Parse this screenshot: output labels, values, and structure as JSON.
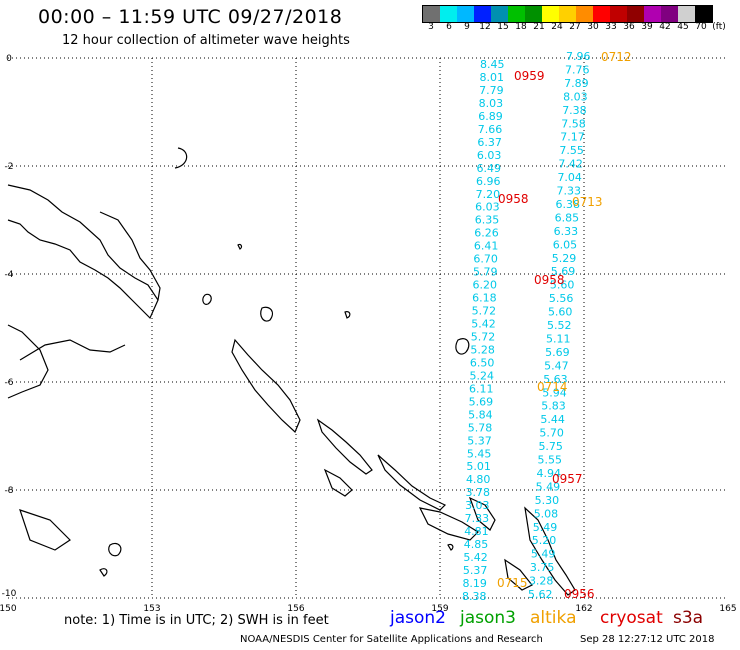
{
  "title": "00:00 – 11:59 UTC 09/27/2018",
  "subtitle": "12 hour collection of altimeter wave heights",
  "colorbar": {
    "colors": [
      "#707070",
      "#00eeee",
      "#00b8ff",
      "#0020ff",
      "#0090b0",
      "#00c000",
      "#009000",
      "#ffff00",
      "#ffd000",
      "#ff8c00",
      "#ff0000",
      "#c00000",
      "#900000",
      "#b000b0",
      "#800080",
      "#d0d0d0",
      "#000000"
    ],
    "labels": [
      "3",
      "6",
      "9",
      "12",
      "15",
      "18",
      "21",
      "24",
      "27",
      "30",
      "33",
      "36",
      "39",
      "42",
      "45",
      "70",
      "(ft)"
    ]
  },
  "map": {
    "lon_ticks": [
      "150",
      "153",
      "156",
      "159",
      "162",
      "165"
    ],
    "lat_ticks": [
      "0",
      "-2",
      "-4",
      "-6",
      "-8",
      "-10"
    ],
    "track_a": [
      "8.45",
      "8.01",
      "7.79",
      "8.03",
      "6.89",
      "7.66",
      "6.37",
      "6.03",
      "6.49",
      "6.96",
      "7.20",
      "6.03",
      "6.35",
      "6.26",
      "6.41",
      "6.70",
      "5.79",
      "6.20",
      "6.18",
      "5.72",
      "5.42",
      "5.72",
      "5.28",
      "6.50",
      "5.24",
      "6.11",
      "5.69",
      "5.84",
      "5.78",
      "5.37",
      "5.45",
      "5.01",
      "4.80",
      "3.78",
      "3.03",
      "7.33",
      "4.81",
      "4.85",
      "5.42",
      "5.37",
      "8.19",
      "8.38"
    ],
    "track_b": [
      "7.96",
      "7.76",
      "7.89",
      "8.03",
      "7.38",
      "7.58",
      "7.17",
      "7.55",
      "7.42",
      "7.04",
      "7.33",
      "6.38",
      "6.85",
      "6.33",
      "6.05",
      "5.29",
      "5.69",
      "5.60",
      "5.56",
      "5.60",
      "5.52",
      "5.11",
      "5.69",
      "5.47",
      "5.63",
      "5.94",
      "5.83",
      "5.44",
      "5.70",
      "5.75",
      "5.55",
      "4.94",
      "5.49",
      "5.30",
      "5.08",
      "5.49",
      "5.20",
      "5.49",
      "3.75",
      "3.28",
      "5.62"
    ],
    "times_red": [
      "0959",
      "0958",
      "0958",
      "0957",
      "0956"
    ],
    "times_orange": [
      "0712",
      "0713",
      "0714",
      "0715"
    ],
    "track_color": "#00c8e8",
    "red_color": "#e00000",
    "orange_color": "#f0a000"
  },
  "note": "note:  1) Time is in UTC;  2) SWH is in feet",
  "satellites": [
    {
      "name": "jason2",
      "color": "#0000ff"
    },
    {
      "name": "jason3",
      "color": "#00a000"
    },
    {
      "name": "altika",
      "color": "#f0a000"
    },
    {
      "name": "cryosat",
      "color": "#e00000"
    },
    {
      "name": "s3a",
      "color": "#8b0000"
    }
  ],
  "credit": "NOAA/NESDIS Center for Satellite Applications and Research",
  "timestamp": "Sep 28 12:27:12 UTC 2018"
}
